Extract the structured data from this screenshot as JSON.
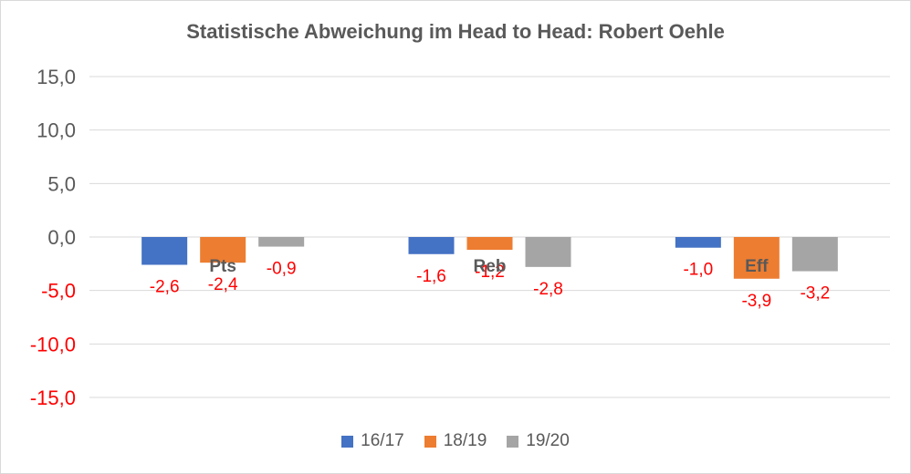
{
  "chart_data": {
    "type": "bar",
    "title": "Statistische Abweichung im Head to Head: Robert Oehle",
    "categories": [
      "Pts",
      "Reb",
      "Eff"
    ],
    "series": [
      {
        "name": "16/17",
        "color": "#4472c4",
        "values": [
          -2.6,
          -1.6,
          -1.0
        ],
        "labels": [
          "-2,6",
          "-1,6",
          "-1,0"
        ]
      },
      {
        "name": "18/19",
        "color": "#ed7d31",
        "values": [
          -2.4,
          -1.2,
          -3.9
        ],
        "labels": [
          "-2,4",
          "-1,2",
          "-3,9"
        ]
      },
      {
        "name": "19/20",
        "color": "#a5a5a5",
        "values": [
          -0.9,
          -2.8,
          -3.2
        ],
        "labels": [
          "-0,9",
          "-2,8",
          "-3,2"
        ]
      }
    ],
    "ylim": [
      -15,
      15
    ],
    "yticks": [
      15,
      10,
      5,
      0,
      -5,
      -10,
      -15
    ],
    "ytick_labels": [
      "15,0",
      "10,0",
      "5,0",
      "0,0",
      "-5,0",
      "-10,0",
      "-15,0"
    ],
    "grid": true,
    "legend_position": "bottom",
    "negative_label_color": "#ff0000"
  }
}
